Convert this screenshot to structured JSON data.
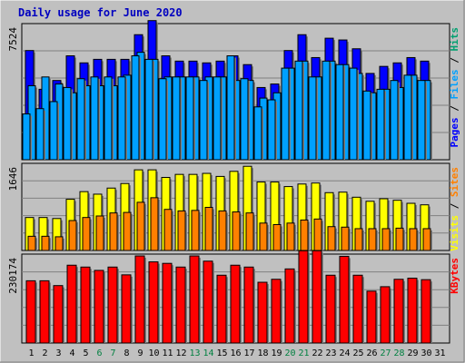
{
  "colors": {
    "background": "#c0c0c0",
    "panel": "#c0c0c0",
    "title": "#0000c0",
    "pages": "#0000ff",
    "files": "#00a0ff",
    "hits": "#00a070",
    "visits": "#ffff00",
    "sites": "#ff8000",
    "kbytes": "#ff0000",
    "weekend_label": "#008040",
    "weekday_label": "#000000"
  },
  "chart_data": {
    "type": "bar",
    "title": "Daily usage for June 2020",
    "categories": [
      "1",
      "2",
      "3",
      "4",
      "5",
      "6",
      "7",
      "8",
      "9",
      "10",
      "11",
      "12",
      "13",
      "14",
      "15",
      "16",
      "17",
      "18",
      "19",
      "20",
      "21",
      "22",
      "23",
      "24",
      "25",
      "26",
      "27",
      "28",
      "29",
      "30",
      "31"
    ],
    "weekend_days": [
      "6",
      "7",
      "13",
      "14",
      "20",
      "21",
      "27",
      "28"
    ],
    "panels": [
      {
        "id": "top",
        "ymax_label": "7524",
        "ymax": 7524,
        "legend": [
          "Pages",
          "Files",
          "Hits"
        ],
        "series": [
          {
            "name": "Pages",
            "values": [
              6200,
              4000,
              4500,
              5900,
              5500,
              5700,
              5700,
              5700,
              7100,
              7900,
              5900,
              5600,
              5600,
              5500,
              5600,
              5900,
              5400,
              4100,
              4300,
              6200,
              7100,
              5800,
              6900,
              6800,
              6300,
              4900,
              5300,
              5500,
              5800,
              5600,
              0
            ]
          },
          {
            "name": "Files",
            "values": [
              4200,
              4700,
              4300,
              3800,
              4200,
              4200,
              4200,
              4800,
              6100,
              5700,
              4700,
              4700,
              4700,
              4700,
              4700,
              4500,
              4500,
              3500,
              3800,
              5200,
              5600,
              4700,
              5600,
              5400,
              4900,
              3800,
              4000,
              4100,
              4800,
              4500,
              0
            ]
          },
          {
            "name": "Hits",
            "values": [
              2600,
              2900,
              3300,
              4100,
              4600,
              4700,
              4700,
              4700,
              5900,
              5700,
              4600,
              4700,
              4700,
              4500,
              4700,
              5900,
              4600,
              3000,
              3400,
              5200,
              5600,
              4700,
              5600,
              5400,
              5200,
              3900,
              4000,
              4500,
              4800,
              4500,
              0
            ]
          }
        ]
      },
      {
        "id": "middle",
        "ymax_label": "1646",
        "ymax": 1646,
        "legend": [
          "Visits",
          "Sites"
        ],
        "series": [
          {
            "name": "Visits",
            "values": [
              650,
              650,
              630,
              1010,
              1160,
              1110,
              1230,
              1320,
              1590,
              1590,
              1440,
              1500,
              1500,
              1520,
              1460,
              1560,
              1660,
              1350,
              1350,
              1260,
              1310,
              1330,
              1140,
              1150,
              1050,
              970,
              1020,
              990,
              930,
              900,
              0
            ]
          },
          {
            "name": "Sites",
            "values": [
              280,
              280,
              270,
              590,
              650,
              680,
              740,
              750,
              950,
              1040,
              810,
              780,
              790,
              850,
              780,
              760,
              740,
              540,
              510,
              540,
              600,
              620,
              470,
              460,
              430,
              430,
              430,
              440,
              430,
              430,
              0
            ]
          }
        ]
      },
      {
        "id": "bottom",
        "ymax_label": "230174",
        "ymax": 230174,
        "legend": [
          "KBytes"
        ],
        "series": [
          {
            "name": "KBytes",
            "values": [
              168000,
              168000,
              155000,
              210000,
              205000,
              196000,
              205000,
              184000,
              235000,
              219000,
              215000,
              205000,
              235000,
              221000,
              183000,
              210000,
              205000,
              164000,
              172000,
              200000,
              249000,
              249000,
              183000,
              234000,
              183000,
              140000,
              152000,
              172000,
              175000,
              171000,
              0
            ]
          }
        ]
      }
    ]
  }
}
